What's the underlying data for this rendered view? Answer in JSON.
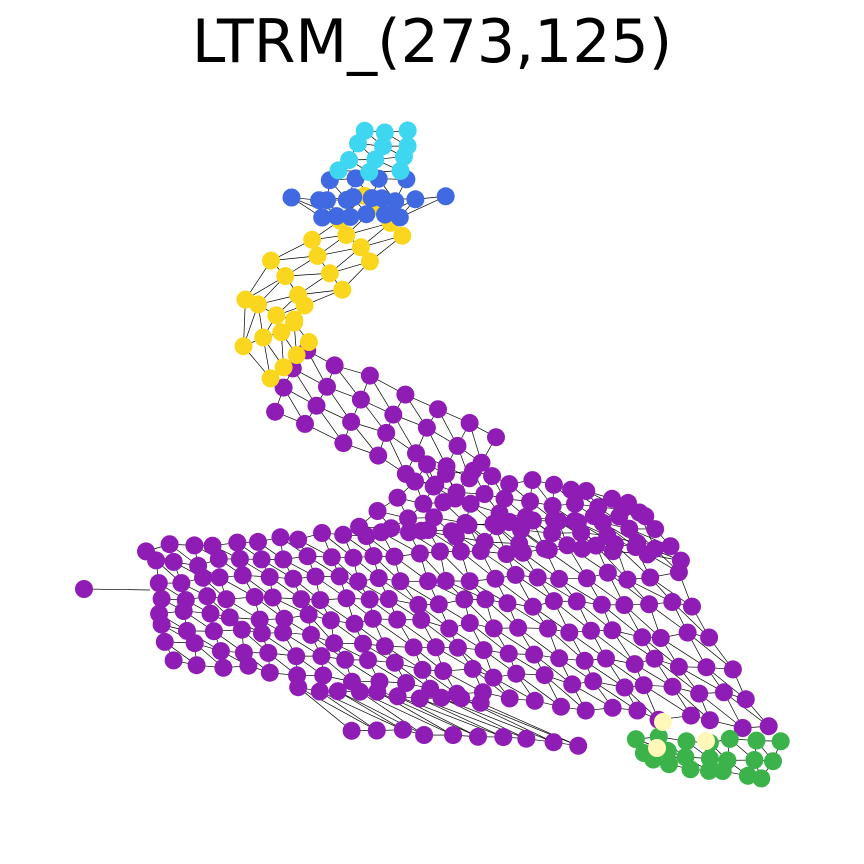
{
  "title": "LTRM_(273,125)"
}
